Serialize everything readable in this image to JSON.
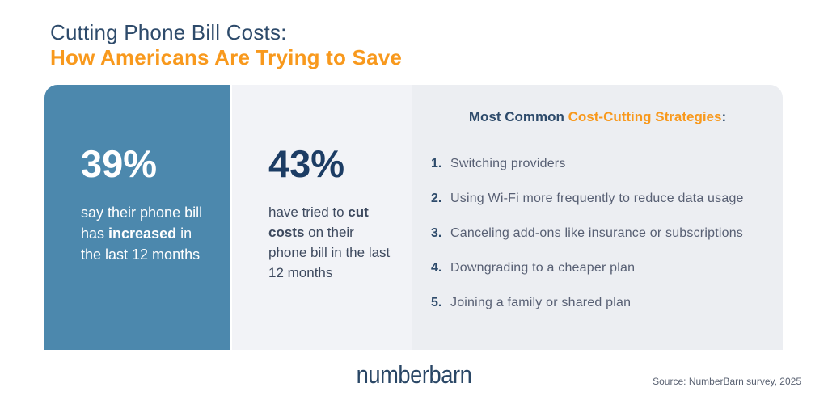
{
  "header": {
    "title_line1": "Cutting Phone Bill Costs:",
    "title_line2": "How Americans Are Trying to Save"
  },
  "stats": [
    {
      "value": "39%",
      "text_before": "say their phone bill has ",
      "text_bold": "increased",
      "text_after": " in the last 12 months"
    },
    {
      "value": "43%",
      "text_before": "have tried to ",
      "text_bold": "cut costs",
      "text_after": " on their phone bill in the last 12 months"
    }
  ],
  "strategies": {
    "heading_prefix": "Most Common ",
    "heading_highlight": "Cost-Cutting Strategies",
    "heading_suffix": ":",
    "items": [
      {
        "number": "1.",
        "label": "Switching providers"
      },
      {
        "number": "2.",
        "label": "Using Wi-Fi more frequently to reduce data usage"
      },
      {
        "number": "3.",
        "label": "Canceling add-ons like insurance or subscriptions"
      },
      {
        "number": "4.",
        "label": "Downgrading to a cheaper plan"
      },
      {
        "number": "5.",
        "label": "Joining a family or shared plan"
      }
    ]
  },
  "footer": {
    "logo_text": "numberbarn",
    "source": "Source: NumberBarn survey, 2025"
  },
  "colors": {
    "navy": "#2E4B6B",
    "dark_navy": "#1C3C64",
    "orange": "#F8991D",
    "panel_blue": "#4C88AD",
    "panel_gray_light": "#F2F3F7",
    "panel_gray": "#ECEEF2",
    "slate_text": "#575F73",
    "white": "#FFFFFF"
  }
}
